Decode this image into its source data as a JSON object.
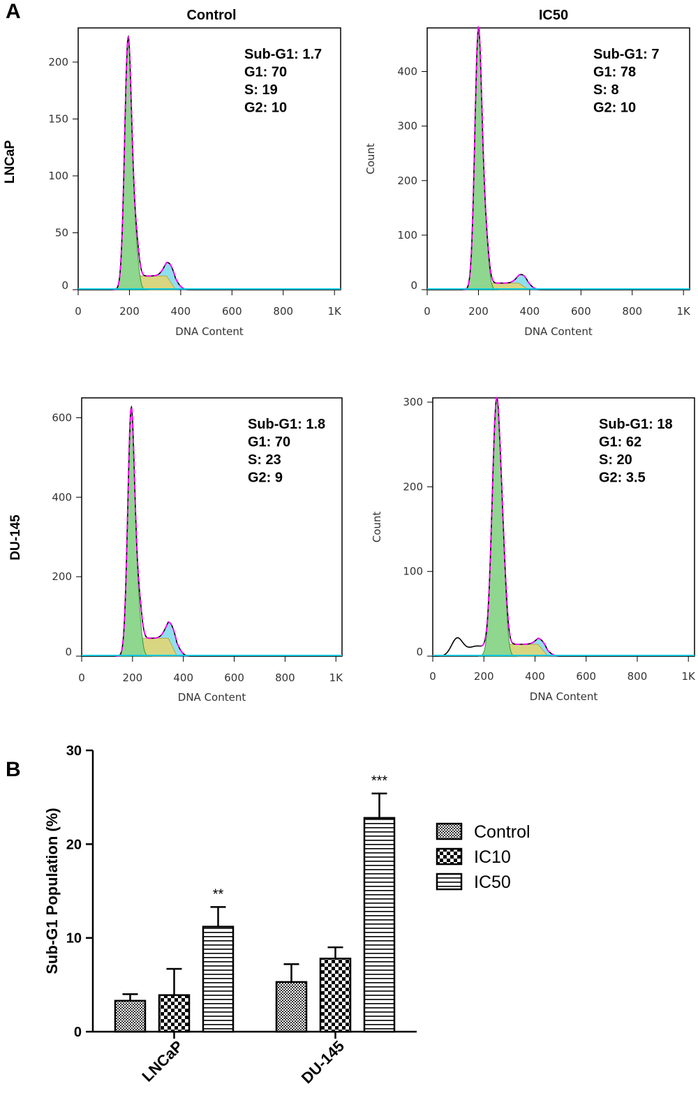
{
  "panel_a_letter": "A",
  "panel_b_letter": "B",
  "columns": [
    "Control",
    "IC50"
  ],
  "rows": [
    "LNCaP",
    "DU-145"
  ],
  "colors": {
    "g1_fill": "#8fd68f",
    "g1_edge": "#2f9a2f",
    "s_fill": "#d8d680",
    "g2_fill": "#8fe0ee",
    "g2_edge": "#4a7fd0",
    "fit": "#ff00ff",
    "data": "#000000",
    "baseline": "#00c8e0"
  },
  "chart_data": [
    {
      "type": "histogram",
      "cell": "LNCaP",
      "condition": "Control",
      "xlabel": "DNA Content",
      "ylabel": "",
      "xticks": [
        "0",
        "200",
        "400",
        "600",
        "800",
        "1K"
      ],
      "yticks": [
        "0",
        "50",
        "100",
        "150",
        "200"
      ],
      "xlim": [
        0,
        1024
      ],
      "ylim": [
        0,
        230
      ],
      "g1_peak": 195,
      "g1_height": 220,
      "g2_peak": 360,
      "g2_height": 15,
      "s_height": 12,
      "sub_g1_hump": null,
      "stats": [
        "Sub-G1: 1.7",
        "G1: 70",
        "S: 19",
        "G2: 10"
      ]
    },
    {
      "type": "histogram",
      "cell": "LNCaP",
      "condition": "IC50",
      "xlabel": "DNA Content",
      "ylabel": "Count",
      "xticks": [
        "0",
        "200",
        "400",
        "600",
        "800",
        "1K"
      ],
      "yticks": [
        "0",
        "100",
        "200",
        "300",
        "400"
      ],
      "xlim": [
        0,
        1024
      ],
      "ylim": [
        0,
        480
      ],
      "g1_peak": 200,
      "g1_height": 475,
      "g2_peak": 375,
      "g2_height": 20,
      "s_height": 12,
      "sub_g1_hump": null,
      "stats": [
        "Sub-G1: 7",
        "G1: 78",
        "S: 8",
        "G2: 10"
      ]
    },
    {
      "type": "histogram",
      "cell": "DU-145",
      "condition": "Control",
      "xlabel": "DNA Content",
      "ylabel": "",
      "xticks": [
        "0",
        "200",
        "400",
        "600",
        "800",
        "1K"
      ],
      "yticks": [
        "0",
        "200",
        "400",
        "600"
      ],
      "xlim": [
        0,
        1024
      ],
      "ylim": [
        0,
        650
      ],
      "g1_peak": 195,
      "g1_height": 620,
      "g2_peak": 355,
      "g2_height": 50,
      "s_height": 45,
      "sub_g1_hump": null,
      "stats": [
        "Sub-G1: 1.8",
        "G1: 70",
        "S: 23",
        "G2: 9"
      ]
    },
    {
      "type": "histogram",
      "cell": "DU-145",
      "condition": "IC50",
      "xlabel": "DNA Content",
      "ylabel": "Count",
      "xticks": [
        "0",
        "200",
        "400",
        "600",
        "800",
        "1K"
      ],
      "yticks": [
        "0",
        "100",
        "200",
        "300"
      ],
      "xlim": [
        0,
        1024
      ],
      "ylim": [
        0,
        305
      ],
      "g1_peak": 250,
      "g1_height": 300,
      "g2_peak": 430,
      "g2_height": 10,
      "s_height": 14,
      "sub_g1_hump": {
        "center": 95,
        "height": 20
      },
      "stats": [
        "Sub-G1: 18",
        "G1: 62",
        "S: 20",
        "G2: 3.5"
      ]
    },
    {
      "type": "bar",
      "ylabel": "Sub-G1 Population (%)",
      "categories": [
        "LNCaP",
        "DU-145"
      ],
      "yticks": [
        "0",
        "10",
        "20",
        "30"
      ],
      "ylim": [
        0,
        30
      ],
      "legend_position": "right",
      "series": [
        {
          "name": "Control",
          "pattern": "fine-check",
          "values": [
            3.3,
            5.3
          ],
          "errors": [
            0.7,
            1.9
          ],
          "sig": [
            "",
            ""
          ]
        },
        {
          "name": "IC10",
          "pattern": "checker",
          "values": [
            3.9,
            7.8
          ],
          "errors": [
            2.8,
            1.2
          ],
          "sig": [
            "",
            ""
          ]
        },
        {
          "name": "IC50",
          "pattern": "horizontal-lines",
          "values": [
            11.2,
            22.8
          ],
          "errors": [
            2.1,
            2.6
          ],
          "sig": [
            "**",
            "***"
          ]
        }
      ]
    }
  ]
}
